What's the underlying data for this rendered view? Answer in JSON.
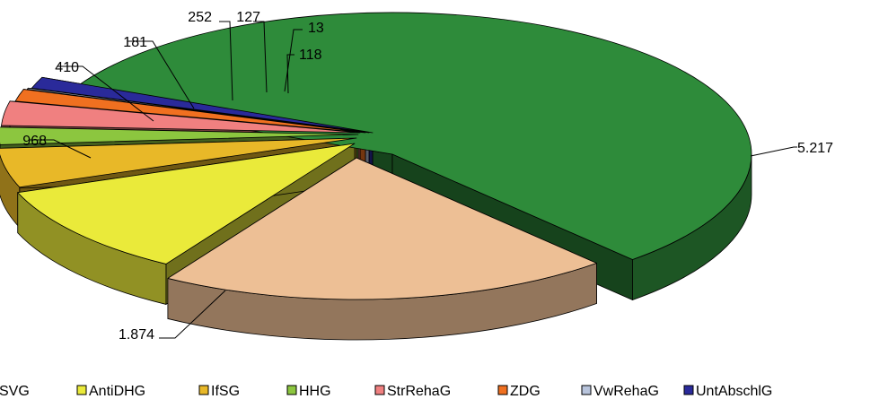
{
  "chart_data": {
    "type": "pie",
    "style": "3d-exploded",
    "title": "",
    "categories": [
      "SVG",
      "AntiDHG",
      "IfSG",
      "HHG",
      "StrRehaG",
      "ZDG",
      "VwRehaG",
      "UntAbschlG"
    ],
    "values": [
      1874,
      968,
      410,
      181,
      252,
      127,
      13,
      118
    ],
    "big_slice": {
      "name": "",
      "value": 5217
    },
    "data_labels": {
      "big": "5.217",
      "SVG": "1.874",
      "AntiDHG": "968",
      "IfSG": "410",
      "HHG": "181",
      "StrRehaG": "252",
      "ZDG": "127",
      "VwRehaG": "13",
      "UntAbschlG": "118"
    },
    "colors": {
      "big": "#2e8b3a",
      "SVG": "#edbf95",
      "AntiDHG": "#eaea3a",
      "IfSG": "#e8b828",
      "HHG": "#8cc63f",
      "StrRehaG": "#f08080",
      "ZDG": "#f07020",
      "VwRehaG": "#b8c4dc",
      "UntAbschlG": "#2a2a9a"
    },
    "legend": {
      "position": "bottom",
      "items": [
        {
          "label": "SVG",
          "key": "SVG"
        },
        {
          "label": "AntiDHG",
          "key": "AntiDHG"
        },
        {
          "label": "IfSG",
          "key": "IfSG"
        },
        {
          "label": "HHG",
          "key": "HHG"
        },
        {
          "label": "StrRehaG",
          "key": "StrRehaG"
        },
        {
          "label": "ZDG",
          "key": "ZDG"
        },
        {
          "label": "VwRehaG",
          "key": "VwRehaG"
        },
        {
          "label": "UntAbschlG",
          "key": "UntAbschlG"
        }
      ]
    }
  }
}
